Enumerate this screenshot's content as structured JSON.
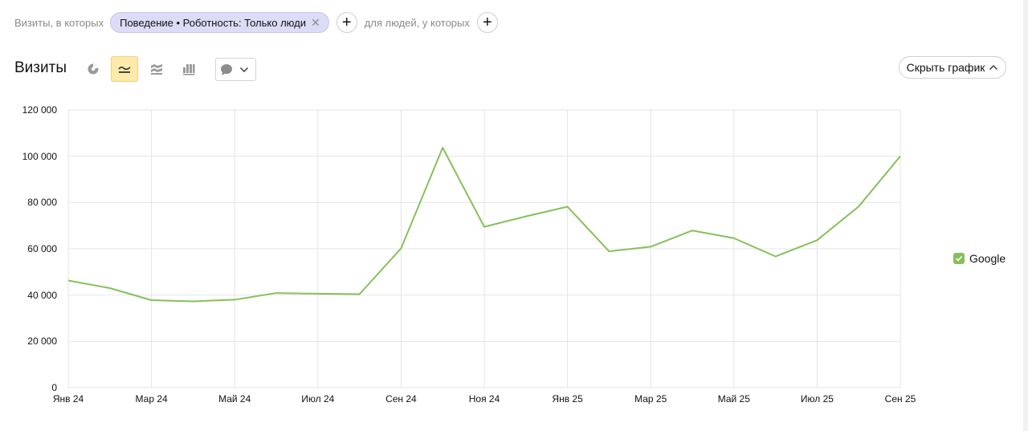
{
  "filters": {
    "visits_label": "Визиты, в которых",
    "chip_label": "Поведение • Роботность: Только люди",
    "chip_remove_icon": "close-icon",
    "add_visit_condition_icon": "plus-icon",
    "people_label": "для людей, у которых",
    "add_people_condition_icon": "plus-icon"
  },
  "header": {
    "title": "Визиты",
    "chart_types": [
      {
        "name": "pie-chart-icon",
        "active": false
      },
      {
        "name": "line-chart-icon",
        "active": true
      },
      {
        "name": "area-chart-icon",
        "active": false
      },
      {
        "name": "bar-chart-icon",
        "active": false
      }
    ],
    "annotations_dropdown_icon": "speech-bubble-icon",
    "hide_chart_label": "Скрыть график",
    "hide_chart_icon": "chevron-up-icon"
  },
  "legend": {
    "items": [
      {
        "label": "Google",
        "color": "#86c05a",
        "checked": true
      }
    ]
  },
  "chart_data": {
    "type": "line",
    "title": "Визиты",
    "xlabel": "",
    "ylabel": "",
    "x": [
      "Янв 24",
      "Фев 24",
      "Мар 24",
      "Апр 24",
      "Май 24",
      "Июн 24",
      "Июл 24",
      "Авг 24",
      "Сен 24",
      "Окт 24",
      "Ноя 24",
      "Дек 24",
      "Янв 25",
      "Фев 25",
      "Мар 25",
      "Апр 25",
      "Май 25",
      "Июн 25",
      "Июл 25",
      "Авг 25",
      "Сен 25"
    ],
    "series": [
      {
        "name": "Google",
        "color": "#86c05a",
        "values": [
          46300,
          43000,
          37800,
          37300,
          38000,
          40900,
          40600,
          40400,
          60200,
          103700,
          69500,
          74000,
          78200,
          58900,
          60900,
          67900,
          64600,
          56700,
          63700,
          78300,
          100000
        ]
      }
    ],
    "x_tick_labels": [
      "Янв 24",
      "Мар 24",
      "Май 24",
      "Июл 24",
      "Сен 24",
      "Ноя 24",
      "Янв 25",
      "Мар 25",
      "Май 25",
      "Июл 25",
      "Сен 25"
    ],
    "y_tick_labels": [
      "0",
      "20 000",
      "40 000",
      "60 000",
      "80 000",
      "100 000",
      "120 000"
    ],
    "ylim": [
      0,
      120000
    ],
    "grid": true,
    "legend_position": "right"
  }
}
